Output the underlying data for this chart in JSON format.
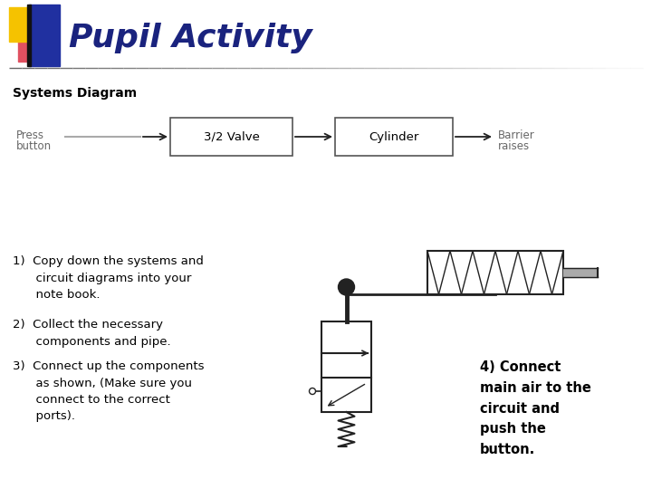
{
  "title": "Pupil Activity",
  "title_color": "#1a237e",
  "title_fontsize": 26,
  "bg_color": "#ffffff",
  "systems_diagram_label": "Systems Diagram",
  "box1_label": "3/2 Valve",
  "box2_label": "Cylinder",
  "input_label": "Press\nbutton",
  "output_label": "Barrier\nraises",
  "step1": "1)  Copy down the systems and\n      circuit diagrams into your\n      note book.",
  "step2": "2)  Collect the necessary\n      components and pipe.",
  "step3": "3)  Connect up the components\n      as shown, (Make sure you\n      connect to the correct\n      ports).",
  "step4": "4) Connect\nmain air to the\ncircuit and\npush the\nbutton.",
  "header_yellow": "#f5c200",
  "header_blue": "#2030a0",
  "header_pink": "#e05060",
  "text_color": "#000000",
  "box_edge": "#555555",
  "diagram_color": "#222222"
}
